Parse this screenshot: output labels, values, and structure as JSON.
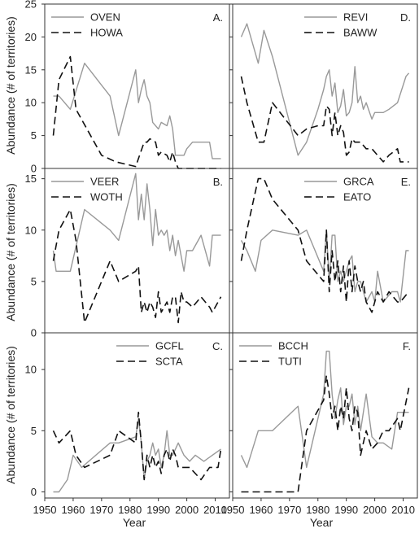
{
  "colors": {
    "gray_series": "#999999",
    "dashed_series": "#111111",
    "frame": "#333333",
    "background": "#ffffff"
  },
  "chart_data": [
    {
      "panel": "A.",
      "type": "line",
      "xlabel": "",
      "ylabel": "Abundance (# of territories)",
      "xlim": [
        1950,
        2015
      ],
      "ylim": [
        0,
        25
      ],
      "yticks": [
        0,
        5,
        10,
        15,
        20,
        25
      ],
      "legend_position": "top-left",
      "series": [
        {
          "name": "OVEN",
          "style": "solid-gray",
          "x": [
            1953,
            1955,
            1959,
            1964,
            1973,
            1976,
            1982,
            1983,
            1984,
            1985,
            1986,
            1987,
            1988,
            1990,
            1991,
            1993,
            1994,
            1995,
            1996,
            1997,
            1999,
            2000,
            2002,
            2005,
            2008,
            2009,
            2012
          ],
          "y": [
            11,
            11,
            9,
            16,
            11,
            5,
            15,
            10,
            12,
            13.5,
            11,
            10,
            7,
            6,
            7,
            6.5,
            8,
            6,
            2,
            2,
            2,
            3,
            4,
            4,
            4,
            1.5,
            1.5
          ]
        },
        {
          "name": "HOWA",
          "style": "dashed-black",
          "x": [
            1953,
            1955,
            1959,
            1961,
            1970,
            1975,
            1980,
            1982,
            1985,
            1986,
            1987,
            1989,
            1990,
            1991,
            1993,
            1994,
            1995,
            1996,
            1997,
            1999,
            2001,
            2005,
            2012
          ],
          "y": [
            5,
            13.5,
            17,
            9,
            2,
            1,
            0.5,
            0.3,
            4,
            4,
            4.5,
            4,
            2,
            2.5,
            2,
            1,
            2.5,
            1,
            0,
            0,
            0,
            0,
            0
          ]
        }
      ]
    },
    {
      "panel": "B.",
      "type": "line",
      "xlabel": "",
      "ylabel": "Abundance (# of territories)",
      "xlim": [
        1950,
        2015
      ],
      "ylim": [
        0,
        16
      ],
      "yticks": [
        0,
        5,
        10,
        15
      ],
      "legend_position": "top-left",
      "series": [
        {
          "name": "VEER",
          "style": "solid-gray",
          "x": [
            1953,
            1954,
            1955,
            1956,
            1959,
            1964,
            1973,
            1976,
            1982,
            1983,
            1984,
            1985,
            1986,
            1987,
            1988,
            1989,
            1990,
            1991,
            1992,
            1993,
            1994,
            1995,
            1996,
            1997,
            1999,
            2000,
            2002,
            2005,
            2008,
            2009,
            2012
          ],
          "y": [
            8,
            6,
            6,
            6,
            6,
            12,
            10,
            9,
            15.5,
            11,
            13.5,
            11,
            14.5,
            12,
            8.5,
            12,
            9.5,
            10,
            9.5,
            10,
            8,
            9.5,
            7.5,
            9,
            6,
            8,
            8,
            9.5,
            6.5,
            9.5,
            9.5
          ]
        },
        {
          "name": "WOTH",
          "style": "dashed-black",
          "x": [
            1953,
            1955,
            1959,
            1961,
            1964,
            1973,
            1976,
            1982,
            1983,
            1984,
            1985,
            1986,
            1987,
            1988,
            1989,
            1990,
            1991,
            1992,
            1993,
            1994,
            1995,
            1996,
            1997,
            1998,
            1999,
            2000,
            2002,
            2005,
            2008,
            2009,
            2012
          ],
          "y": [
            7,
            10,
            12,
            9,
            1,
            7,
            5,
            6,
            6.5,
            2,
            3,
            2,
            3,
            2.5,
            1.5,
            4,
            2,
            2.5,
            3,
            2,
            3.5,
            3.5,
            1,
            4,
            3,
            3,
            2.5,
            3.5,
            2.5,
            2,
            3.5
          ]
        }
      ]
    },
    {
      "panel": "C.",
      "type": "line",
      "xlabel": "Year",
      "ylabel": "Abundance (# of territories)",
      "xlim": [
        1950,
        2015
      ],
      "ylim": [
        -0.5,
        13
      ],
      "yticks": [
        0,
        5,
        10
      ],
      "xticks": [
        1950,
        1960,
        1970,
        1980,
        1990,
        2000,
        2010
      ],
      "legend_position": "top-right",
      "series": [
        {
          "name": "GCFL",
          "style": "solid-gray",
          "x": [
            1953,
            1955,
            1958,
            1960,
            1963,
            1973,
            1976,
            1982,
            1983,
            1984,
            1985,
            1986,
            1987,
            1988,
            1989,
            1990,
            1991,
            1992,
            1993,
            1994,
            1995,
            1997,
            1999,
            2001,
            2003,
            2006,
            2009,
            2012
          ],
          "y": [
            0,
            0,
            1,
            3,
            2,
            4,
            4,
            4.5,
            6,
            4,
            1,
            2.5,
            3,
            4,
            3,
            3.5,
            2,
            3,
            5,
            3,
            3,
            4,
            3,
            2.5,
            3,
            2.5,
            3,
            3.5
          ]
        },
        {
          "name": "SCTA",
          "style": "dashed-black",
          "x": [
            1953,
            1955,
            1959,
            1961,
            1964,
            1973,
            1976,
            1982,
            1983,
            1984,
            1985,
            1986,
            1987,
            1988,
            1989,
            1990,
            1991,
            1992,
            1993,
            1994,
            1995,
            1996,
            1997,
            1999,
            2001,
            2005,
            2008,
            2011,
            2012
          ],
          "y": [
            5,
            4,
            5,
            3,
            2,
            3,
            5,
            4,
            6.5,
            4,
            1,
            3,
            2,
            3,
            2,
            2.5,
            1.5,
            3,
            3.5,
            2.5,
            3.5,
            3,
            2,
            2,
            2,
            1,
            2,
            2,
            3.5
          ]
        }
      ]
    },
    {
      "panel": "D.",
      "type": "line",
      "xlabel": "",
      "ylabel": "",
      "xlim": [
        1950,
        2015
      ],
      "ylim": [
        0,
        25
      ],
      "yticks": [
        0,
        5,
        10,
        15,
        20,
        25
      ],
      "legend_position": "top-right",
      "series": [
        {
          "name": "REVI",
          "style": "solid-gray",
          "x": [
            1953,
            1955,
            1959,
            1961,
            1964,
            1973,
            1976,
            1980,
            1982,
            1983,
            1984,
            1985,
            1986,
            1987,
            1988,
            1989,
            1990,
            1991,
            1992,
            1993,
            1994,
            1995,
            1996,
            1997,
            1999,
            2000,
            2003,
            2005,
            2008,
            2011,
            2012
          ],
          "y": [
            20,
            22,
            16,
            21,
            17,
            2,
            4,
            9,
            12,
            14,
            15,
            11,
            13,
            8.5,
            9.5,
            12,
            8,
            8.5,
            10,
            15.5,
            10,
            11,
            9,
            10,
            7.5,
            8.5,
            8.5,
            9,
            10,
            14,
            14.5
          ]
        },
        {
          "name": "BAWW",
          "style": "dashed-black",
          "x": [
            1953,
            1955,
            1959,
            1961,
            1964,
            1973,
            1976,
            1980,
            1982,
            1983,
            1984,
            1985,
            1986,
            1987,
            1988,
            1989,
            1990,
            1991,
            1992,
            1993,
            1994,
            1995,
            1997,
            1999,
            2003,
            2005,
            2008,
            2009,
            2012
          ],
          "y": [
            14,
            10,
            4,
            4,
            10,
            5,
            6,
            6.5,
            6.5,
            9.5,
            9,
            5,
            8.5,
            5,
            6.5,
            5.5,
            2,
            2.5,
            4.5,
            4,
            4,
            4,
            3,
            3,
            1,
            2,
            3,
            1,
            1
          ]
        }
      ]
    },
    {
      "panel": "E.",
      "type": "line",
      "xlabel": "",
      "ylabel": "",
      "xlim": [
        1950,
        2015
      ],
      "ylim": [
        0,
        16
      ],
      "yticks": [
        0,
        5,
        10,
        15
      ],
      "legend_position": "top-right",
      "series": [
        {
          "name": "GRCA",
          "style": "solid-gray",
          "x": [
            1953,
            1955,
            1958,
            1960,
            1964,
            1973,
            1976,
            1982,
            1983,
            1984,
            1985,
            1986,
            1987,
            1988,
            1989,
            1990,
            1991,
            1992,
            1993,
            1994,
            1995,
            1997,
            1999,
            2000,
            2001,
            2003,
            2006,
            2008,
            2009,
            2011,
            2012
          ],
          "y": [
            9,
            8,
            6,
            9,
            10,
            9.5,
            10,
            6,
            10,
            5,
            9.5,
            9.5,
            5,
            6,
            5,
            6,
            7,
            7.5,
            4,
            5,
            5,
            3,
            4,
            3,
            6,
            3,
            4,
            4,
            3,
            8,
            8
          ]
        },
        {
          "name": "EATO",
          "style": "dashed-black",
          "x": [
            1953,
            1955,
            1959,
            1961,
            1964,
            1973,
            1976,
            1982,
            1983,
            1984,
            1985,
            1986,
            1987,
            1988,
            1989,
            1990,
            1991,
            1992,
            1993,
            1994,
            1995,
            1996,
            1997,
            1999,
            2001,
            2003,
            2005,
            2008,
            2009,
            2012
          ],
          "y": [
            7,
            10,
            15,
            15,
            13,
            10,
            7,
            5,
            10,
            4,
            8,
            5,
            7,
            4,
            6.5,
            3,
            7,
            4,
            6.5,
            5,
            4,
            5,
            3,
            2,
            4,
            3,
            4,
            3,
            3,
            4
          ]
        }
      ]
    },
    {
      "panel": "F.",
      "type": "line",
      "xlabel": "Year",
      "ylabel": "",
      "xlim": [
        1950,
        2015
      ],
      "ylim": [
        -0.5,
        13
      ],
      "yticks": [
        0,
        5,
        10
      ],
      "xticks": [
        1950,
        1960,
        1970,
        1980,
        1990,
        2000,
        2010
      ],
      "legend_position": "top-left",
      "series": [
        {
          "name": "BCCH",
          "style": "solid-gray",
          "x": [
            1953,
            1955,
            1959,
            1961,
            1964,
            1973,
            1976,
            1982,
            1983,
            1984,
            1985,
            1986,
            1987,
            1988,
            1989,
            1990,
            1991,
            1992,
            1993,
            1994,
            1995,
            1996,
            1997,
            1999,
            2001,
            2003,
            2006,
            2008,
            2009,
            2012
          ],
          "y": [
            3,
            2,
            5,
            5,
            5,
            7,
            2,
            8,
            11.5,
            11.5,
            8,
            6,
            7.5,
            8.5,
            5.5,
            7,
            7,
            8,
            5.5,
            7,
            5,
            6.5,
            8,
            4.5,
            4,
            4,
            3.5,
            6.5,
            6.5,
            6.5
          ]
        },
        {
          "name": "TUTI",
          "style": "dashed-black",
          "x": [
            1953,
            1955,
            1959,
            1961,
            1964,
            1973,
            1976,
            1982,
            1983,
            1984,
            1985,
            1986,
            1987,
            1988,
            1989,
            1990,
            1991,
            1992,
            1993,
            1994,
            1995,
            1996,
            1997,
            1999,
            2001,
            2003,
            2005,
            2008,
            2009,
            2012
          ],
          "y": [
            0,
            0,
            0,
            0,
            0,
            0,
            5,
            7.5,
            9.5,
            8,
            6,
            7,
            5,
            7,
            6,
            8.5,
            6,
            5,
            7,
            6.5,
            3,
            4,
            5,
            3.5,
            4,
            5,
            5,
            6,
            5,
            8.5
          ]
        }
      ]
    }
  ]
}
